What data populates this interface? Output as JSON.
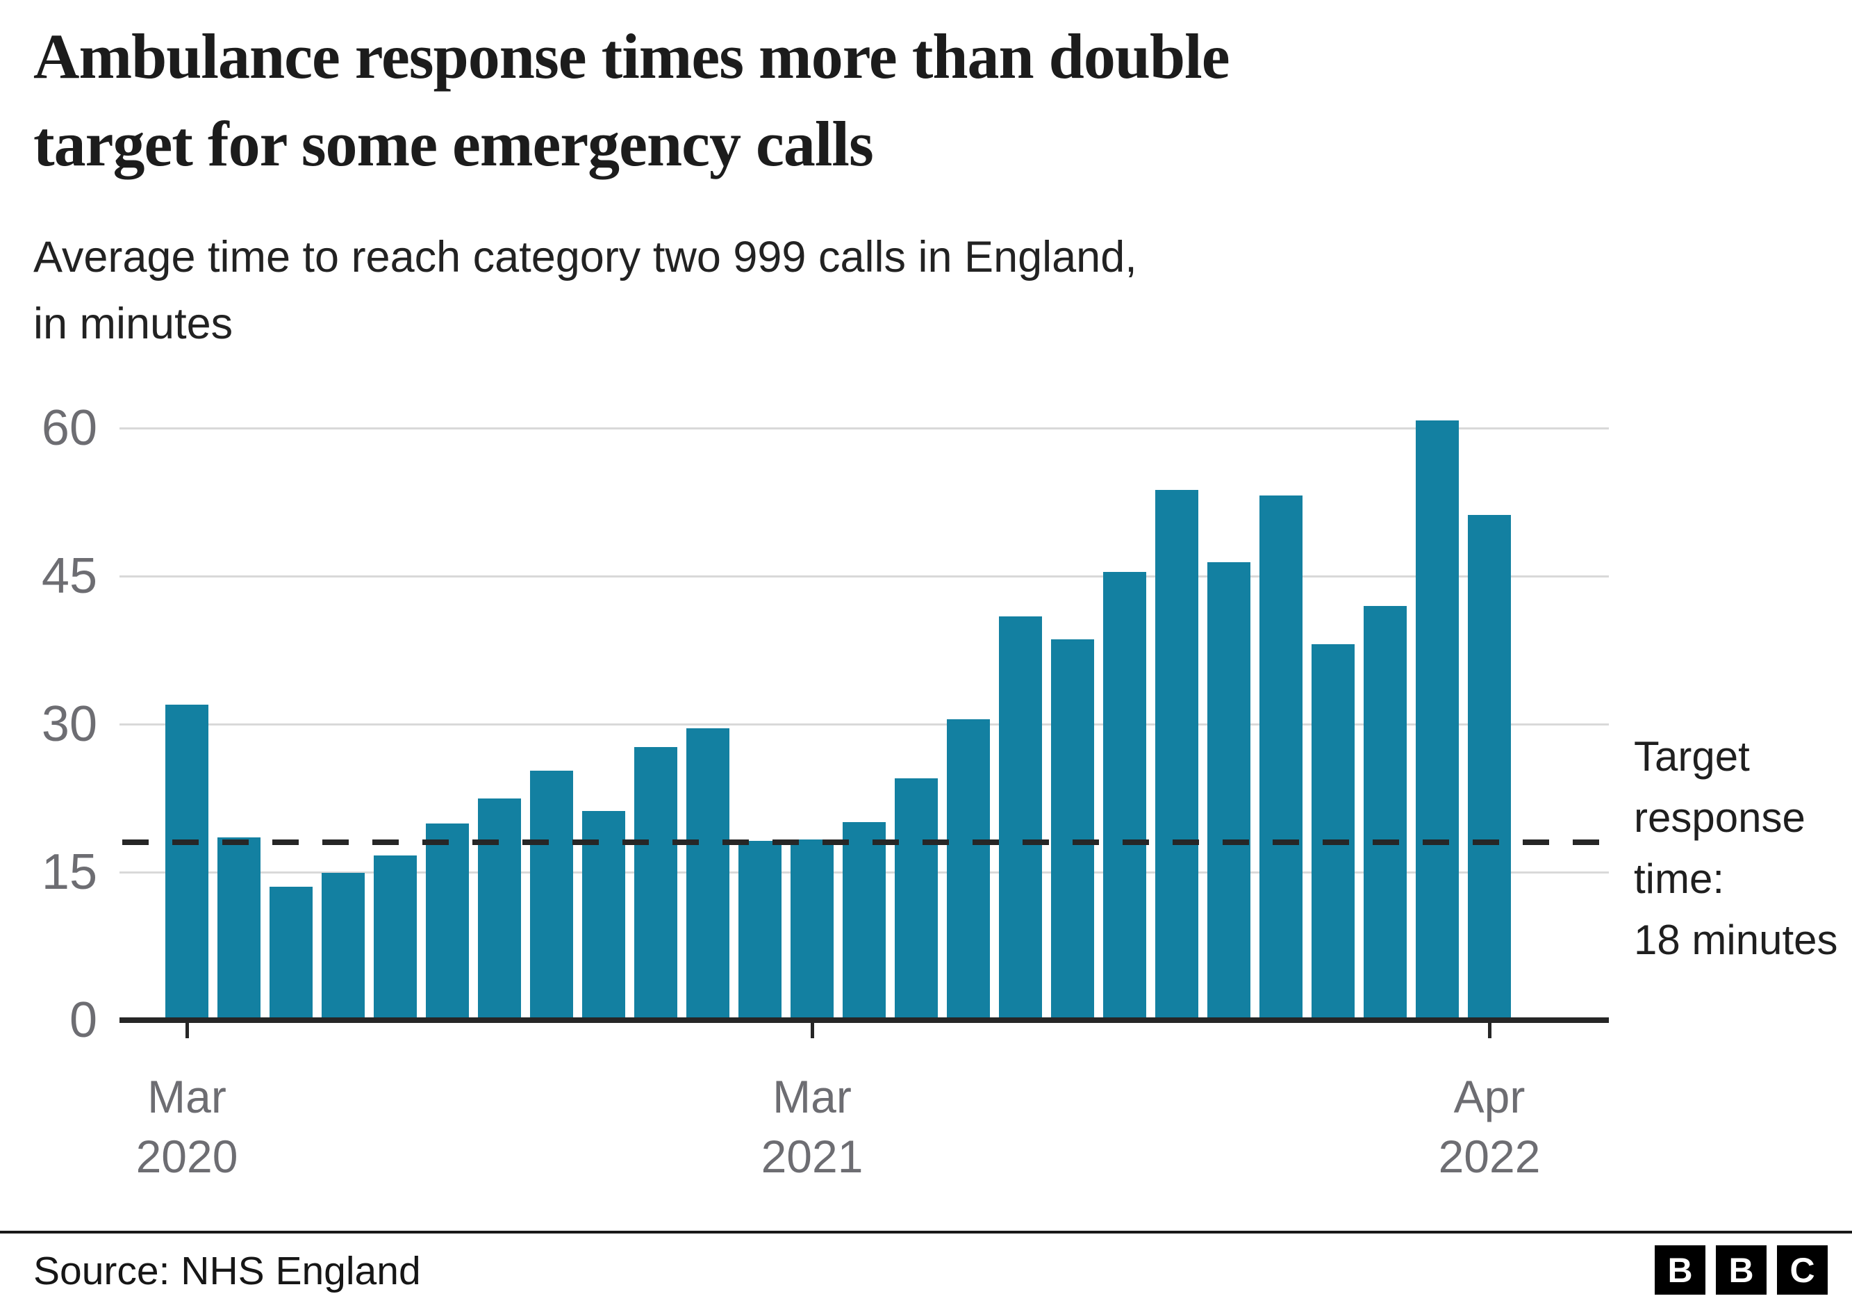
{
  "header": {
    "title_lines": [
      "Ambulance response times more than double",
      "target for some emergency calls"
    ],
    "subtitle_lines": [
      "Average time to reach category two 999 calls in England,",
      "in minutes"
    ]
  },
  "chart_data": {
    "type": "bar",
    "title": "Ambulance response times more than double target for some emergency calls",
    "subtitle": "Average time to reach category two 999 calls in England, in minutes",
    "ylabel": "minutes",
    "xlabel": "",
    "ylim": [
      0,
      60
    ],
    "yticks": [
      0,
      15,
      30,
      45,
      60
    ],
    "grid": true,
    "bar_color": "#1380A1",
    "gridline_color": "#d9d9d9",
    "categories": [
      "Mar 2020",
      "Apr 2020",
      "May 2020",
      "Jun 2020",
      "Jul 2020",
      "Aug 2020",
      "Sep 2020",
      "Oct 2020",
      "Nov 2020",
      "Dec 2020",
      "Jan 2021",
      "Feb 2021",
      "Mar 2021",
      "Apr 2021",
      "May 2021",
      "Jun 2021",
      "Jul 2021",
      "Aug 2021",
      "Sep 2021",
      "Oct 2021",
      "Nov 2021",
      "Dec 2021",
      "Jan 2022",
      "Feb 2022",
      "Mar 2022",
      "Apr 2022"
    ],
    "values": [
      32,
      18.5,
      13.5,
      14.9,
      16.7,
      19.9,
      22.5,
      25.3,
      21.2,
      27.7,
      29.6,
      18.2,
      18.3,
      20.1,
      24.5,
      30.5,
      40.9,
      38.6,
      45.4,
      53.7,
      46.4,
      53.2,
      38.1,
      42,
      60.8,
      51.2
    ],
    "xtick_labels": [
      {
        "index": 0,
        "line1": "Mar",
        "line2": "2020"
      },
      {
        "index": 12,
        "line1": "Mar",
        "line2": "2021"
      },
      {
        "index": 25,
        "line1": "Apr",
        "line2": "2022"
      }
    ],
    "target_line": {
      "value": 18,
      "color": "#262626",
      "label_lines": [
        "Target",
        "response",
        "time:",
        "18 minutes"
      ]
    }
  },
  "footer": {
    "source": "Source: NHS England",
    "logo_letters": [
      "B",
      "B",
      "C"
    ]
  }
}
